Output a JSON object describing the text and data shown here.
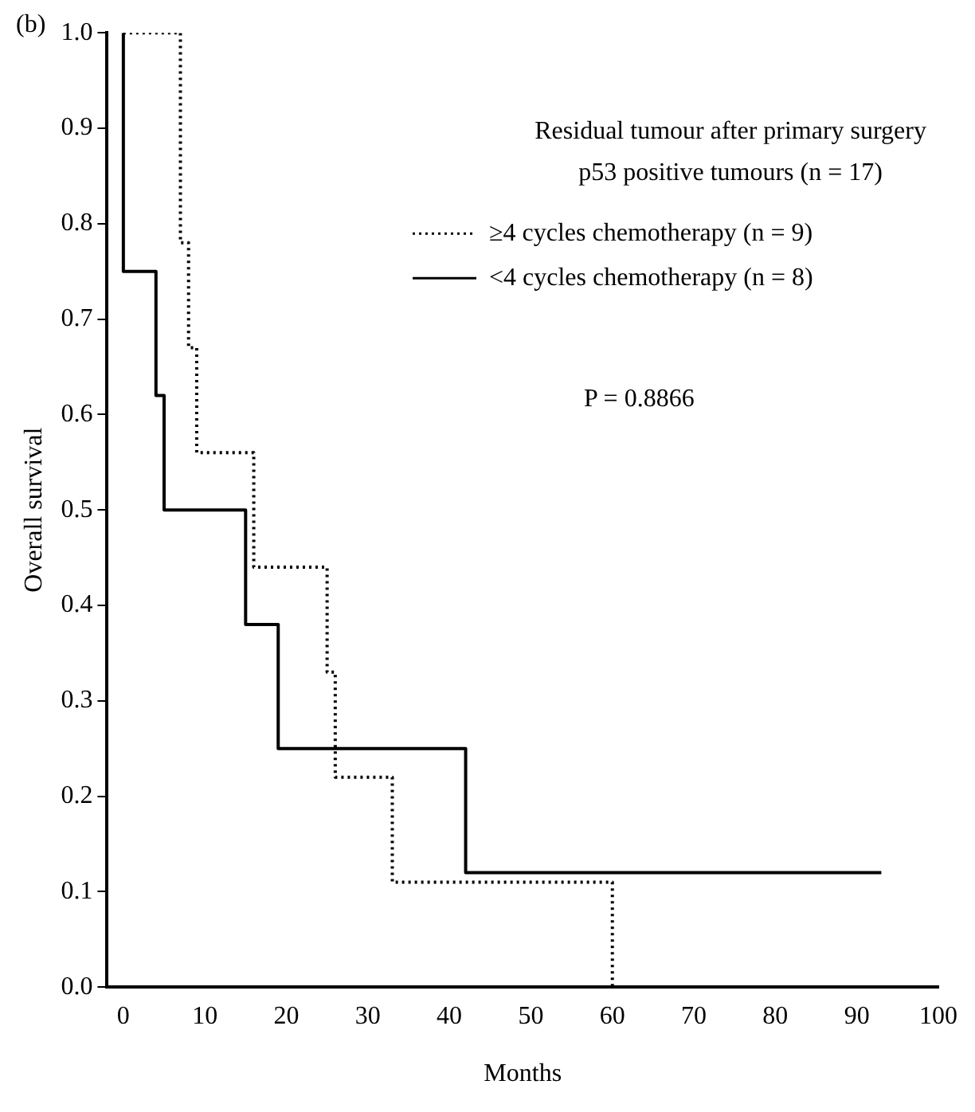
{
  "chart_data": {
    "type": "step",
    "title": "Residual tumour after primary surgery",
    "subtitle": "p53 positive tumours (n = 17)",
    "xlabel": "Months",
    "ylabel": "Overall survival",
    "annotations": [
      "(b)",
      "P = 0.8866"
    ],
    "series": [
      {
        "name": "≥4 cycles chemotherapy (n = 9)",
        "color": "#000000",
        "line_style": "dotted",
        "x": [
          0,
          7,
          8,
          9,
          16,
          25,
          26,
          33,
          60
        ],
        "values": [
          1.0,
          0.78,
          0.67,
          0.56,
          0.44,
          0.33,
          0.22,
          0.11,
          0.0
        ]
      },
      {
        "name": "<4 cycles chemotherapy (n = 8)",
        "color": "#000000",
        "line_style": "solid",
        "x": [
          0,
          0,
          4,
          5,
          15,
          19,
          42,
          93
        ],
        "values": [
          1.0,
          0.75,
          0.62,
          0.5,
          0.38,
          0.25,
          0.12,
          0.12
        ]
      }
    ],
    "xlim": [
      -2,
      100
    ],
    "xticks": [
      0,
      10,
      20,
      30,
      40,
      50,
      60,
      70,
      80,
      90,
      100
    ],
    "ylim": [
      0,
      1.0
    ],
    "yticks": [
      {
        "value": 0,
        "label": "0.0"
      },
      0.1,
      0.2,
      0.3,
      0.4,
      0.5,
      0.6,
      0.7,
      0.8,
      0.9,
      {
        "value": 1.0,
        "label": "1.0"
      }
    ],
    "legend": "top right",
    "grid": false
  }
}
